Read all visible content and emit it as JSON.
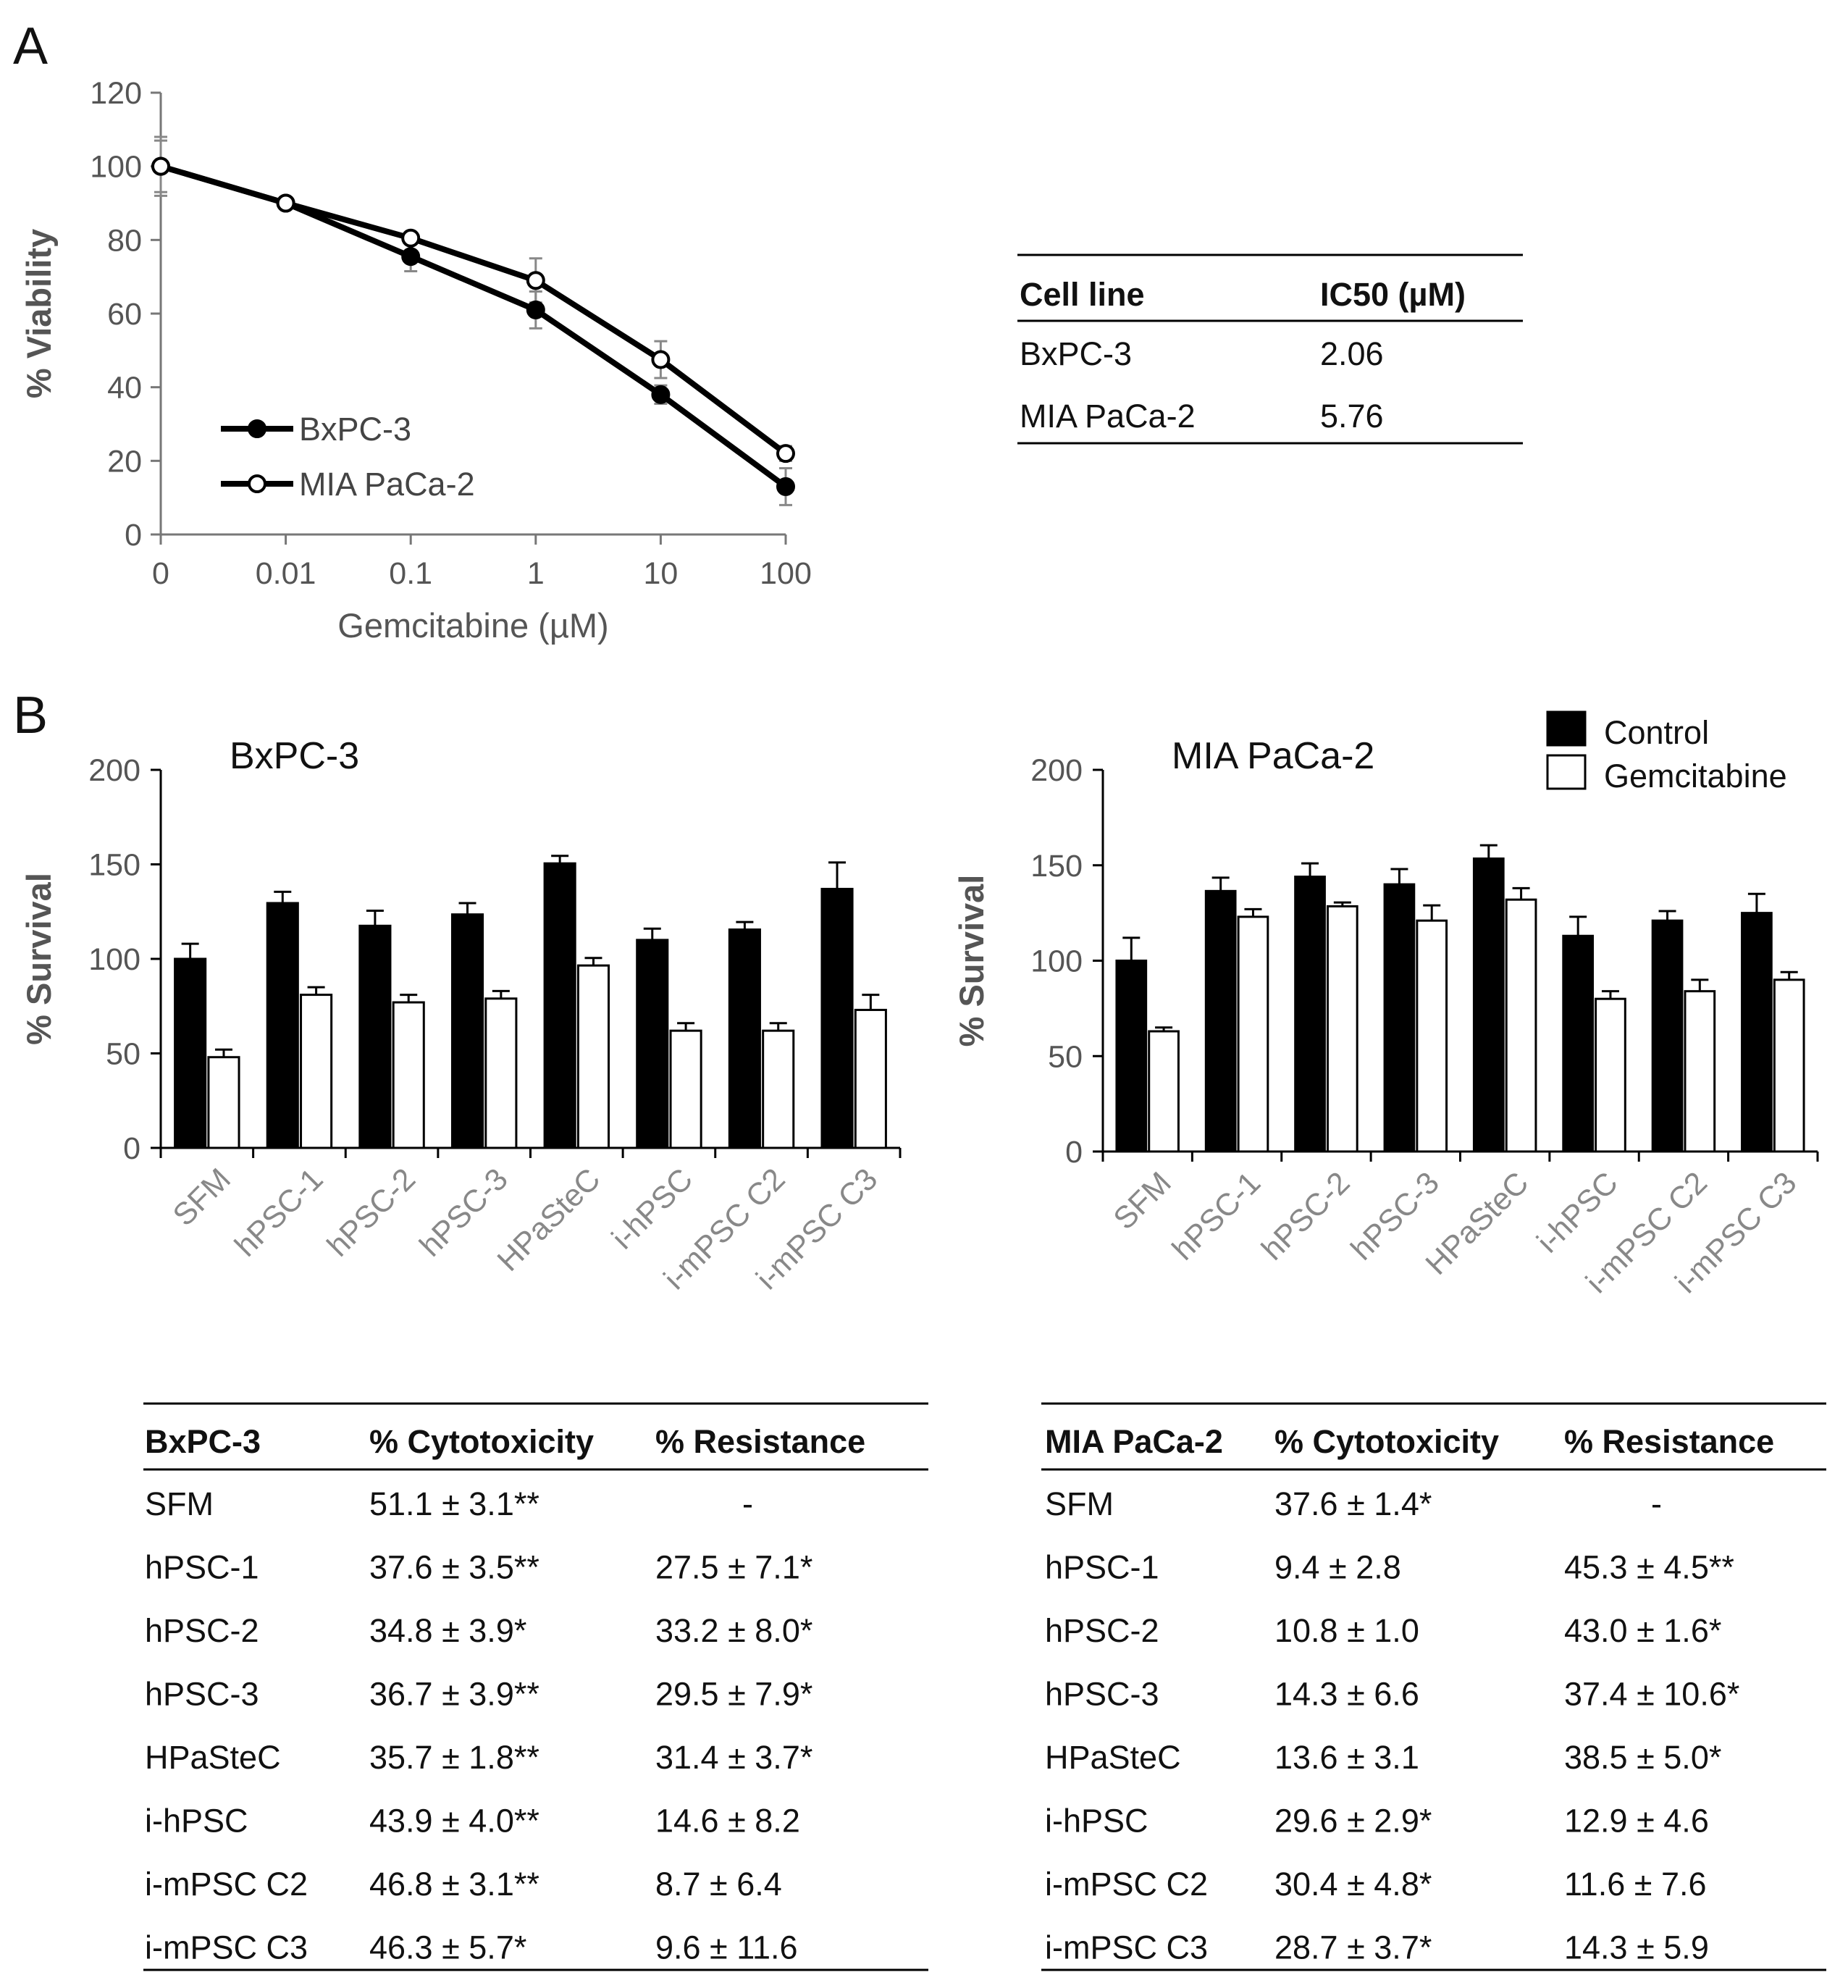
{
  "panels": {
    "a": "A",
    "b": "B"
  },
  "chart_data": [
    {
      "type": "line",
      "x": [
        "0",
        "0.01",
        "0.1",
        "1",
        "10",
        "100"
      ],
      "xlabel": "Gemcitabine (µM)",
      "ylabel": "% Viability",
      "yticks": [
        "0",
        "20",
        "40",
        "60",
        "80",
        "100",
        "120"
      ],
      "ylim": [
        0,
        120
      ],
      "legend_position": "bottom-left",
      "series": [
        {
          "name": "BxPC-3",
          "marker": "filled",
          "values": [
            100,
            90,
            75.5,
            61,
            38,
            13
          ],
          "errors": [
            8,
            1,
            4,
            5,
            2.5,
            5
          ]
        },
        {
          "name": "MIA PaCa-2",
          "marker": "open",
          "values": [
            100,
            90,
            80.5,
            69,
            47.5,
            22
          ],
          "errors": [
            7,
            1,
            1.5,
            6,
            5,
            2
          ]
        }
      ]
    },
    {
      "type": "bar",
      "title": "BxPC-3",
      "ylabel": "% Survival",
      "yticks": [
        "0",
        "50",
        "100",
        "150",
        "200"
      ],
      "ylim": [
        0,
        200
      ],
      "categories": [
        "SFM",
        "hPSC-1",
        "hPSC-2",
        "hPSC-3",
        "HPaSteC",
        "i-hPSC",
        "i-mPSC C2",
        "i-mPSC C3"
      ],
      "series": [
        {
          "name": "Control",
          "values": [
            100,
            129.5,
            117.5,
            123.5,
            150.5,
            110,
            115.5,
            137
          ],
          "errors": [
            8,
            6,
            8,
            6,
            4,
            6,
            4,
            14
          ]
        },
        {
          "name": "Gemcitabine",
          "values": [
            48,
            81,
            77,
            79,
            96.5,
            62,
            62,
            73
          ],
          "errors": [
            4,
            4,
            4,
            4,
            4,
            4,
            4,
            8
          ]
        }
      ]
    },
    {
      "type": "bar",
      "title": "MIA PaCa-2",
      "ylabel": "% Survival",
      "yticks": [
        "0",
        "50",
        "100",
        "150",
        "200"
      ],
      "ylim": [
        0,
        200
      ],
      "legend_position": "top-right",
      "categories": [
        "SFM",
        "hPSC-1",
        "hPSC-2",
        "hPSC-3",
        "HPaSteC",
        "i-hPSC",
        "i-mPSC C2",
        "i-mPSC C3"
      ],
      "series": [
        {
          "name": "Control",
          "values": [
            100,
            136.5,
            144,
            140,
            153.5,
            113,
            121,
            125
          ],
          "errors": [
            12,
            7,
            7,
            8,
            7,
            10,
            5,
            10
          ]
        },
        {
          "name": "Gemcitabine",
          "values": [
            63,
            123,
            128.5,
            121,
            132,
            80,
            84,
            90
          ],
          "errors": [
            2,
            4,
            2,
            8,
            6,
            4,
            6,
            4
          ]
        }
      ]
    }
  ],
  "legend_b": {
    "control": "Control",
    "gemcitabine": "Gemcitabine"
  },
  "ic50_table": {
    "headers": [
      "Cell line",
      "IC50 (µM)"
    ],
    "rows": [
      [
        "BxPC-3",
        "2.06"
      ],
      [
        "MIA PaCa-2",
        "5.76"
      ]
    ]
  },
  "tables": [
    {
      "headers": [
        "BxPC-3",
        "% Cytotoxicity",
        "% Resistance"
      ],
      "rows": [
        [
          "SFM",
          "51.1 ± 3.1**",
          "-"
        ],
        [
          "hPSC-1",
          "37.6 ± 3.5**",
          "27.5 ± 7.1*"
        ],
        [
          "hPSC-2",
          "34.8 ± 3.9*",
          "33.2 ± 8.0*"
        ],
        [
          "hPSC-3",
          "36.7 ± 3.9**",
          "29.5 ± 7.9*"
        ],
        [
          "HPaSteC",
          "35.7 ± 1.8**",
          "31.4 ± 3.7*"
        ],
        [
          "i-hPSC",
          "43.9 ± 4.0**",
          "14.6 ± 8.2"
        ],
        [
          "i-mPSC C2",
          "46.8 ± 3.1**",
          "8.7 ± 6.4"
        ],
        [
          "i-mPSC C3",
          "46.3 ± 5.7*",
          "9.6 ± 11.6"
        ]
      ]
    },
    {
      "headers": [
        "MIA PaCa-2",
        "% Cytotoxicity",
        "% Resistance"
      ],
      "rows": [
        [
          "SFM",
          "37.6 ± 1.4*",
          "-"
        ],
        [
          "hPSC-1",
          "9.4 ± 2.8",
          "45.3 ± 4.5**"
        ],
        [
          "hPSC-2",
          "10.8 ± 1.0",
          "43.0 ± 1.6*"
        ],
        [
          "hPSC-3",
          "14.3 ± 6.6",
          "37.4 ± 10.6*"
        ],
        [
          "HPaSteC",
          "13.6 ± 3.1",
          "38.5 ± 5.0*"
        ],
        [
          "i-hPSC",
          "29.6 ± 2.9*",
          "12.9 ± 4.6"
        ],
        [
          "i-mPSC C2",
          "30.4 ± 4.8*",
          "11.6 ± 7.6"
        ],
        [
          "i-mPSC C3",
          "28.7 ± 3.7*",
          "14.3 ± 5.9"
        ]
      ]
    }
  ]
}
